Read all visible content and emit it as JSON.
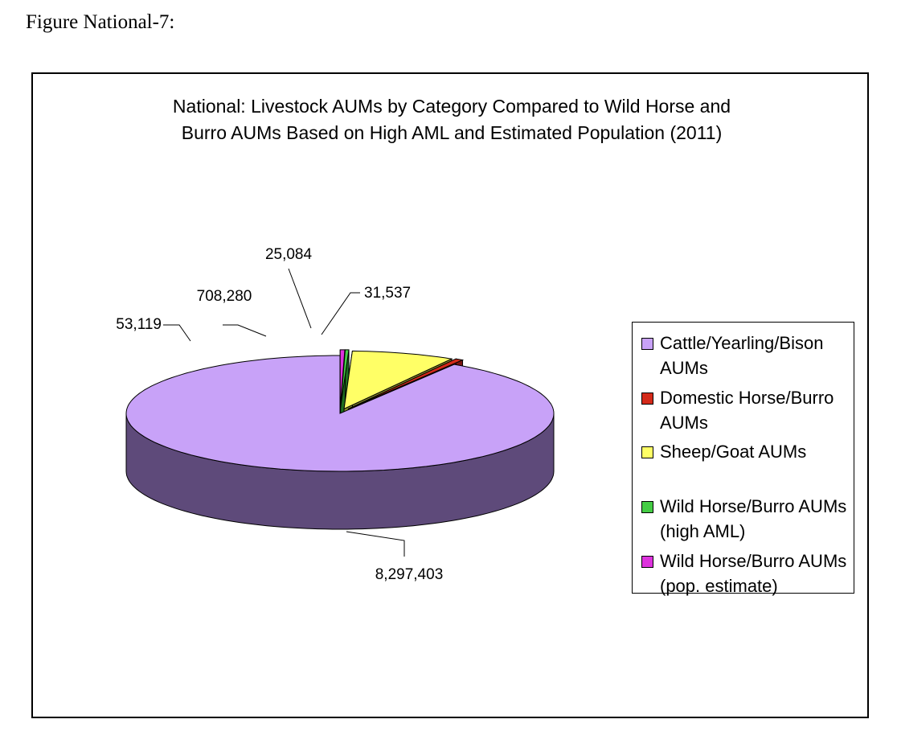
{
  "figure_caption": "Figure National-7:",
  "chart_data": {
    "type": "pie",
    "title_lines": [
      "National: Livestock AUMs by Category Compared to Wild Horse and",
      "Burro AUMs Based on High AML and Estimated Population (2011)"
    ],
    "slices": [
      {
        "name": "Cattle/Yearling/Bison AUMs",
        "value": 8297403,
        "label": "8,297,403",
        "color": "#c8a2f8",
        "side_color": "#5e4a7a"
      },
      {
        "name": "Domestic Horse/Burro AUMs",
        "value": 53119,
        "label": "53,119",
        "color": "#d42a1a",
        "side_color": "#7a1510"
      },
      {
        "name": "Sheep/Goat AUMs",
        "value": 708280,
        "label": "708,280",
        "color": "#ffff66",
        "side_color": "#8a8a2a"
      },
      {
        "name": "Wild Horse/Burro AUMs (high AML)",
        "value": 25084,
        "label": "25,084",
        "color": "#44cc44",
        "side_color": "#1f6e1f"
      },
      {
        "name": "Wild Horse/Burro AUMs (pop. estimate)",
        "value": 31537,
        "label": "31,537",
        "color": "#dd33dd",
        "side_color": "#7a1a7a"
      }
    ],
    "legend": [
      {
        "text": "Cattle/Yearling/Bison AUMs",
        "color": "#c8a2f8"
      },
      {
        "text": "Domestic Horse/Burro AUMs",
        "color": "#d42a1a"
      },
      {
        "text": "Sheep/Goat AUMs",
        "color": "#ffff66"
      },
      {
        "text": "Wild Horse/Burro AUMs (high AML)",
        "color": "#44cc44"
      },
      {
        "text": "Wild Horse/Burro AUMs (pop. estimate)",
        "color": "#dd33dd"
      }
    ],
    "legend_placement": "right",
    "style": "3d-exploded-pie"
  }
}
